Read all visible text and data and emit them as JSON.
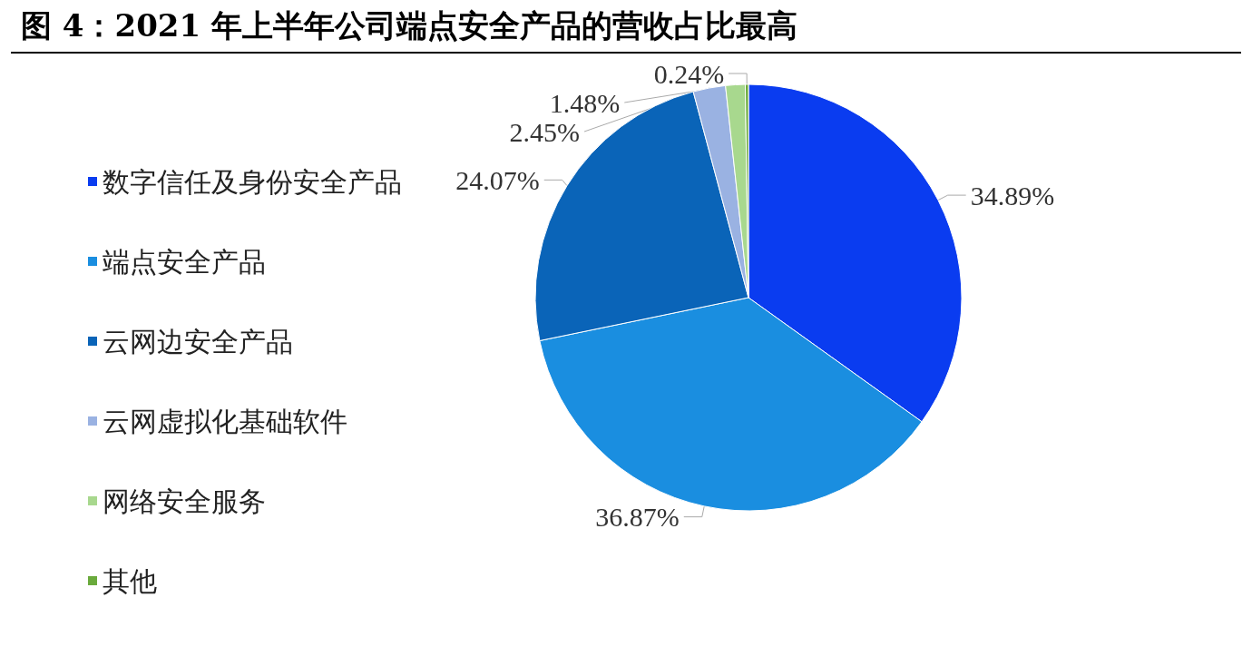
{
  "chart_data": {
    "type": "pie",
    "title": "图 4：2021 年上半年公司端点安全产品的营收占比最高",
    "categories": [
      "数字信任及身份安全产品",
      "端点安全产品",
      "云网边安全产品",
      "云网虚拟化基础软件",
      "网络安全服务",
      "其他"
    ],
    "values": [
      34.89,
      36.87,
      24.07,
      2.45,
      1.48,
      0.24
    ],
    "colors": [
      "#0a3cf0",
      "#1a8ee0",
      "#0a64b8",
      "#9ab2e2",
      "#a8d88e",
      "#6aaa3c"
    ],
    "value_labels": [
      "34.89%",
      "36.87%",
      "24.07%",
      "2.45%",
      "1.48%",
      "0.24%"
    ],
    "legend": "left"
  }
}
